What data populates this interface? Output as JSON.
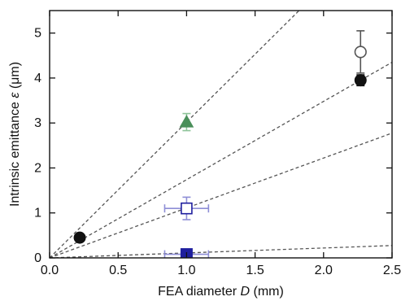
{
  "chart_data": {
    "type": "scatter",
    "title": "",
    "xlabel": {
      "prefix": "FEA diameter ",
      "symbol": "D",
      "suffix": " (mm)"
    },
    "ylabel": {
      "prefix": "Intrinsic emittance ",
      "symbol": "ε",
      "suffix": " (μm)"
    },
    "xlim": [
      0,
      2.5
    ],
    "ylim": [
      0,
      5.5
    ],
    "xticks": [
      0.0,
      0.5,
      1.0,
      1.5,
      2.0,
      2.5
    ],
    "xtick_labels": [
      "0.0",
      "0.5",
      "1.0",
      "1.5",
      "2.0",
      "2.5"
    ],
    "yticks": [
      0,
      1,
      2,
      3,
      4,
      5
    ],
    "ytick_labels": [
      "0",
      "1",
      "2",
      "3",
      "4",
      "5"
    ],
    "grid": false,
    "colors": {
      "black": "#111111",
      "green": "#4a8f5a",
      "green_error": "#8fc49a",
      "blue": "#1f1f9e",
      "blue_error": "#8e8ed6",
      "open_circle": "#555555",
      "dashed_line": "#555555"
    },
    "fit_lines": [
      {
        "slope": 3.02
      },
      {
        "slope": 1.74
      },
      {
        "slope": 1.11
      },
      {
        "slope": 0.11
      }
    ],
    "points": [
      {
        "x": 0.22,
        "y": 0.45,
        "marker": "filled-circle",
        "color": "#111111"
      },
      {
        "x": 2.27,
        "y": 3.95,
        "marker": "filled-circle",
        "color": "#111111",
        "yerr": 0.12
      },
      {
        "x": 2.27,
        "y": 4.58,
        "marker": "open-circle",
        "color": "#555555",
        "yerr": 0.47
      },
      {
        "x": 1.0,
        "y": 3.02,
        "marker": "filled-triangle",
        "color": "#4a8f5a",
        "yerr": 0.19
      },
      {
        "x": 1.0,
        "y": 1.1,
        "marker": "open-square",
        "color": "#1f1f9e",
        "xerr": 0.16,
        "yerr": 0.25
      },
      {
        "x": 1.0,
        "y": 0.08,
        "marker": "filled-square",
        "color": "#1f1f9e",
        "xerr": 0.16
      }
    ]
  }
}
